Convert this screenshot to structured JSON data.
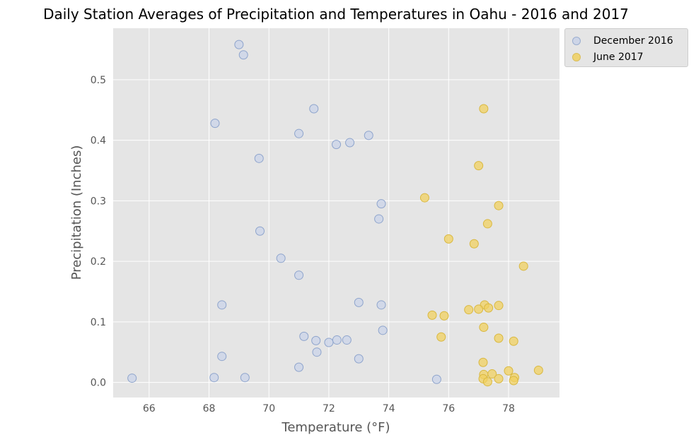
{
  "chart_data": {
    "type": "scatter",
    "title": "Daily Station Averages of Precipitation and Temperatures in Oahu - 2016 and 2017",
    "xlabel": "Temperature (°F)",
    "ylabel": "Precipitation (Inches)",
    "xlim": [
      64.8,
      79.7
    ],
    "ylim": [
      -0.025,
      0.585
    ],
    "xticks": [
      66,
      68,
      70,
      72,
      74,
      76,
      78
    ],
    "yticks": [
      0.0,
      0.1,
      0.2,
      0.3,
      0.4,
      0.5
    ],
    "xtick_labels": [
      "66",
      "68",
      "70",
      "72",
      "74",
      "76",
      "78"
    ],
    "ytick_labels": [
      "0.0",
      "0.1",
      "0.2",
      "0.3",
      "0.4",
      "0.5"
    ],
    "grid": true,
    "legend_position": "outside-top-right",
    "series": [
      {
        "name": "December 2016",
        "fill": "#c9d3e8",
        "edge": "#8ea4cc",
        "points": [
          [
            69.0,
            0.558
          ],
          [
            69.15,
            0.541
          ],
          [
            71.5,
            0.452
          ],
          [
            68.2,
            0.428
          ],
          [
            71.0,
            0.411
          ],
          [
            73.33,
            0.408
          ],
          [
            72.7,
            0.396
          ],
          [
            72.25,
            0.393
          ],
          [
            69.67,
            0.37
          ],
          [
            73.75,
            0.295
          ],
          [
            73.67,
            0.27
          ],
          [
            69.7,
            0.25
          ],
          [
            70.4,
            0.205
          ],
          [
            71.0,
            0.177
          ],
          [
            73.0,
            0.132
          ],
          [
            68.43,
            0.128
          ],
          [
            73.75,
            0.128
          ],
          [
            73.8,
            0.086
          ],
          [
            71.17,
            0.076
          ],
          [
            71.57,
            0.069
          ],
          [
            72.27,
            0.07
          ],
          [
            72.6,
            0.07
          ],
          [
            72.0,
            0.066
          ],
          [
            71.6,
            0.05
          ],
          [
            68.43,
            0.043
          ],
          [
            73.0,
            0.039
          ],
          [
            71.0,
            0.025
          ],
          [
            65.43,
            0.007
          ],
          [
            68.17,
            0.008
          ],
          [
            69.2,
            0.008
          ],
          [
            75.6,
            0.005
          ]
        ]
      },
      {
        "name": "June 2017",
        "fill": "#f0d060",
        "edge": "#d9b840",
        "points": [
          [
            77.17,
            0.452
          ],
          [
            77.0,
            0.358
          ],
          [
            75.2,
            0.305
          ],
          [
            77.67,
            0.292
          ],
          [
            77.3,
            0.262
          ],
          [
            76.0,
            0.237
          ],
          [
            76.85,
            0.229
          ],
          [
            78.5,
            0.192
          ],
          [
            77.2,
            0.128
          ],
          [
            77.67,
            0.127
          ],
          [
            77.33,
            0.123
          ],
          [
            77.0,
            0.121
          ],
          [
            76.67,
            0.12
          ],
          [
            75.45,
            0.111
          ],
          [
            75.85,
            0.11
          ],
          [
            77.17,
            0.091
          ],
          [
            75.75,
            0.075
          ],
          [
            77.67,
            0.073
          ],
          [
            78.17,
            0.068
          ],
          [
            77.15,
            0.033
          ],
          [
            78.0,
            0.019
          ],
          [
            79.0,
            0.02
          ],
          [
            77.17,
            0.013
          ],
          [
            77.45,
            0.014
          ],
          [
            77.15,
            0.006
          ],
          [
            77.67,
            0.006
          ],
          [
            78.2,
            0.008
          ],
          [
            78.17,
            0.003
          ],
          [
            77.3,
            0.001
          ]
        ]
      }
    ]
  }
}
